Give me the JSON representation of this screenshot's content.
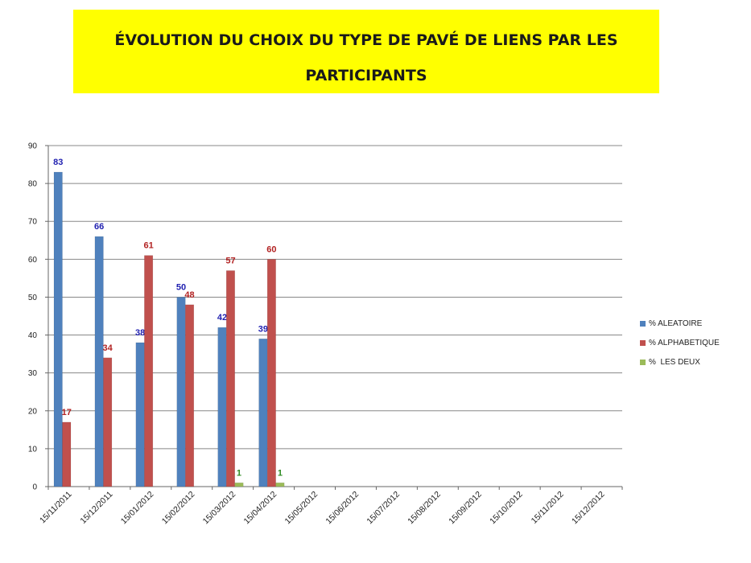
{
  "chart_data": {
    "type": "bar",
    "title": "ÉVOLUTION DU CHOIX DU TYPE DE PAVÉ DE LIENS PAR LES PARTICIPANTS",
    "categories": [
      "15/11/2011",
      "15/12/2011",
      "15/01/2012",
      "15/02/2012",
      "15/03/2012",
      "15/04/2012",
      "15/05/2012",
      "15/06/2012",
      "15/07/2012",
      "15/08/2012",
      "15/09/2012",
      "15/10/2012",
      "15/11/2012",
      "15/12/2012"
    ],
    "ylim": [
      0,
      90
    ],
    "yticks": [
      0,
      10,
      20,
      30,
      40,
      50,
      60,
      70,
      80,
      90
    ],
    "grid": true,
    "legend_position": "right",
    "series": [
      {
        "name": "% ALEATOIRE",
        "color": "#4f81bd",
        "label_color": "#1f1fb0",
        "values": [
          83,
          66,
          38,
          50,
          42,
          39,
          null,
          null,
          null,
          null,
          null,
          null,
          null,
          null
        ],
        "labels": [
          "83",
          "66",
          "38",
          "50",
          "42",
          "39",
          "",
          "",
          "",
          "",
          "",
          "",
          "",
          ""
        ]
      },
      {
        "name": "% ALPHABETIQUE",
        "color": "#c0504d",
        "label_color": "#b22222",
        "values": [
          17,
          34,
          61,
          48,
          57,
          60,
          null,
          null,
          null,
          null,
          null,
          null,
          null,
          null
        ],
        "labels": [
          "17",
          "34",
          "61",
          "48",
          "57",
          "60",
          "",
          "",
          "",
          "",
          "",
          "",
          "",
          ""
        ]
      },
      {
        "name": "%  LES DEUX",
        "color": "#9bbb59",
        "label_color": "#2e8b22",
        "values": [
          null,
          null,
          null,
          null,
          1,
          1,
          null,
          null,
          null,
          null,
          null,
          null,
          null,
          null
        ],
        "labels": [
          "",
          "",
          "",
          "",
          "1",
          "1",
          "",
          "",
          "",
          "",
          "",
          "",
          "",
          ""
        ]
      }
    ]
  }
}
